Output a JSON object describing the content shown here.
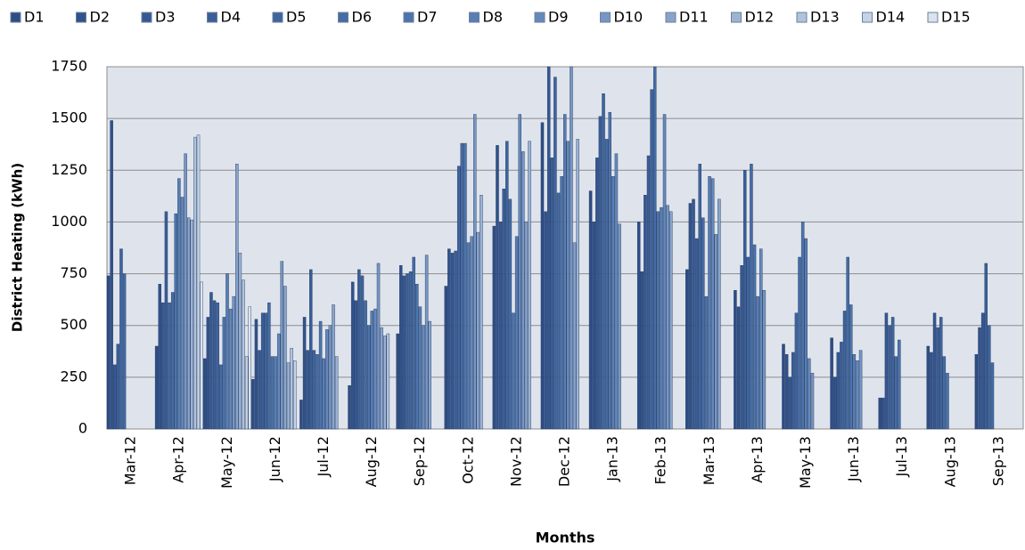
{
  "chart_data": {
    "type": "bar",
    "y_label": "District Heating (kWh)",
    "x_label": "Months",
    "categories": [
      "Mar-12",
      "Apr-12",
      "May-12",
      "Jun-12",
      "Jul-12",
      "Aug-12",
      "Sep-12",
      "Oct-12",
      "Nov-12",
      "Dec-12",
      "Jan-13",
      "Feb-13",
      "Mar-13",
      "Apr-13",
      "May-13",
      "Jun-13",
      "Jul-13",
      "Aug-13",
      "Sep-13"
    ],
    "ylim": [
      0,
      1750
    ],
    "yticks": [
      0,
      250,
      500,
      750,
      1000,
      1250,
      1500,
      1750
    ],
    "grid": true,
    "legend": "top",
    "series": [
      {
        "name": "D1",
        "color": "#2d4d86",
        "values": [
          740,
          400,
          340,
          240,
          140,
          210,
          460,
          690,
          980,
          1480,
          1150,
          1000,
          770,
          670,
          410,
          440,
          150,
          400,
          360
        ]
      },
      {
        "name": "D2",
        "color": "#31528c",
        "values": [
          1490,
          700,
          540,
          530,
          540,
          710,
          790,
          870,
          1370,
          1050,
          1000,
          760,
          1090,
          590,
          360,
          250,
          150,
          370,
          490
        ]
      },
      {
        "name": "D3",
        "color": "#355892",
        "values": [
          310,
          610,
          660,
          380,
          380,
          620,
          740,
          850,
          1000,
          1750,
          1310,
          1130,
          1110,
          790,
          250,
          370,
          560,
          560,
          560
        ]
      },
      {
        "name": "D4",
        "color": "#3a5e98",
        "values": [
          410,
          1050,
          620,
          560,
          770,
          770,
          750,
          860,
          1160,
          1310,
          1510,
          1320,
          920,
          1250,
          370,
          420,
          500,
          490,
          800
        ]
      },
      {
        "name": "D5",
        "color": "#3f659e",
        "values": [
          870,
          610,
          610,
          560,
          380,
          740,
          760,
          1270,
          1390,
          1700,
          1620,
          1640,
          1280,
          830,
          560,
          570,
          540,
          540,
          500
        ]
      },
      {
        "name": "D6",
        "color": "#456ca5",
        "values": [
          750,
          660,
          310,
          610,
          360,
          620,
          830,
          1380,
          1110,
          1140,
          1400,
          1750,
          1020,
          1280,
          830,
          830,
          350,
          350,
          320
        ]
      },
      {
        "name": "D7",
        "color": "#4d74ac",
        "values": [
          null,
          1040,
          540,
          350,
          520,
          500,
          700,
          1380,
          560,
          1220,
          1530,
          1050,
          640,
          890,
          1000,
          600,
          430,
          270,
          null
        ]
      },
      {
        "name": "D8",
        "color": "#587eb3",
        "values": [
          null,
          1210,
          750,
          350,
          340,
          570,
          590,
          900,
          930,
          1520,
          1220,
          1070,
          1220,
          640,
          920,
          360,
          null,
          null,
          null
        ]
      },
      {
        "name": "D9",
        "color": "#6689bb",
        "values": [
          null,
          1120,
          580,
          460,
          480,
          580,
          500,
          930,
          1520,
          1390,
          1330,
          1520,
          1210,
          870,
          340,
          330,
          null,
          null,
          null
        ]
      },
      {
        "name": "D10",
        "color": "#7796c3",
        "values": [
          null,
          1330,
          640,
          810,
          500,
          800,
          840,
          1520,
          1340,
          1750,
          990,
          1080,
          940,
          670,
          270,
          380,
          null,
          null,
          null
        ]
      },
      {
        "name": "D11",
        "color": "#89a4cb",
        "values": [
          null,
          1020,
          1280,
          690,
          600,
          490,
          520,
          950,
          1000,
          900,
          null,
          1050,
          1110,
          null,
          null,
          null,
          null,
          null,
          null
        ]
      },
      {
        "name": "D12",
        "color": "#9cb3d4",
        "values": [
          null,
          1010,
          850,
          320,
          350,
          450,
          null,
          1130,
          1390,
          1400,
          null,
          null,
          null,
          null,
          null,
          null,
          null,
          null,
          null
        ]
      },
      {
        "name": "D13",
        "color": "#b0c3dd",
        "values": [
          null,
          1410,
          720,
          390,
          null,
          460,
          null,
          null,
          null,
          null,
          null,
          null,
          null,
          null,
          null,
          null,
          null,
          null,
          null
        ]
      },
      {
        "name": "D14",
        "color": "#c5d3e6",
        "values": [
          null,
          1420,
          350,
          330,
          null,
          null,
          null,
          null,
          null,
          null,
          null,
          null,
          null,
          null,
          null,
          null,
          null,
          null,
          null
        ]
      },
      {
        "name": "D15",
        "color": "#dae3ef",
        "values": [
          null,
          710,
          590,
          null,
          null,
          null,
          null,
          null,
          null,
          null,
          null,
          null,
          null,
          null,
          null,
          null,
          null,
          null,
          null
        ]
      }
    ]
  }
}
